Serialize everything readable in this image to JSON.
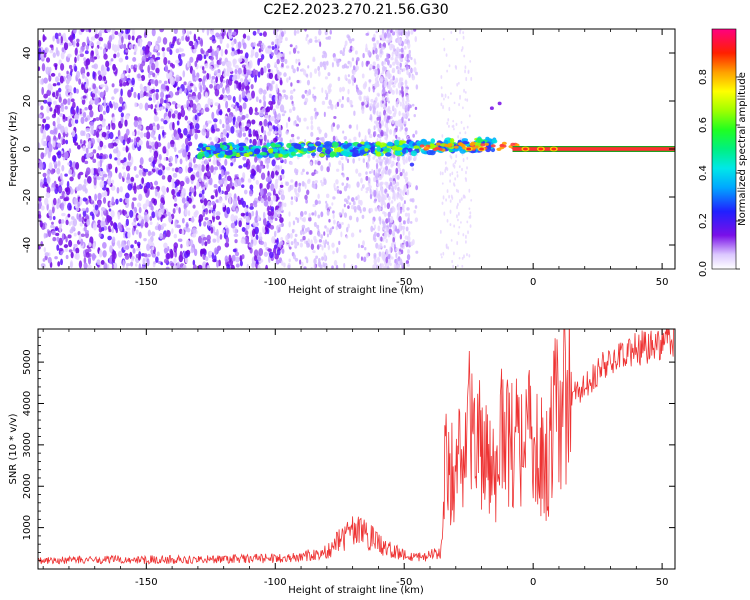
{
  "title": "C2E2.2023.270.21.56.G30",
  "chart_data": [
    {
      "type": "heatmap",
      "xlabel": "Height of straight line (km)",
      "ylabel": "Frequency (Hz)",
      "xlim": [
        -192,
        55
      ],
      "ylim": [
        -50,
        50
      ],
      "xticks": [
        -150,
        -100,
        -50,
        0,
        50
      ],
      "yticks": [
        -40,
        -20,
        0,
        20,
        40
      ],
      "colorbar": {
        "label": "Normalized spectral amplitude",
        "range": [
          0,
          1
        ],
        "ticks": [
          "0.0",
          "0.2",
          "0.4",
          "0.6",
          "0.8"
        ],
        "tick_values": [
          0,
          0.2,
          0.4,
          0.6,
          0.8
        ],
        "colormap": "rainbow (white → violet → blue → cyan → green → yellow → orange → red → magenta)"
      },
      "features": {
        "carrier_line_frequency_hz": 0,
        "carrier_line_x_range": [
          -130,
          55
        ],
        "noise_region_x_range": [
          -192,
          -100
        ],
        "noise_band_x_range": [
          -62,
          -48
        ]
      }
    },
    {
      "type": "line",
      "xlabel": "Height of straight line (km)",
      "ylabel": "SNR (10 * v/v)",
      "xlim": [
        -192,
        55
      ],
      "ylim": [
        0,
        5800
      ],
      "xticks": [
        -150,
        -100,
        -50,
        0,
        50
      ],
      "yticks": [
        1000,
        2000,
        3000,
        4000,
        5000
      ],
      "series": [
        {
          "color": "#ee3333",
          "x": [
            -192,
            -170,
            -150,
            -130,
            -110,
            -100,
            -90,
            -80,
            -75,
            -70,
            -65,
            -60,
            -55,
            -50,
            -45,
            -40,
            -36,
            -34,
            -30,
            -25,
            -20,
            -15,
            -12,
            -10,
            -5,
            0,
            5,
            10,
            15,
            20,
            25,
            30,
            35,
            40,
            45,
            50,
            55
          ],
          "y": [
            200,
            220,
            230,
            230,
            250,
            260,
            300,
            400,
            700,
            900,
            850,
            600,
            450,
            330,
            300,
            330,
            450,
            2500,
            2200,
            3500,
            3000,
            2200,
            3500,
            3000,
            3000,
            3400,
            2400,
            4200,
            4200,
            4400,
            4800,
            5000,
            5200,
            5300,
            5400,
            5500,
            5550
          ]
        }
      ]
    }
  ]
}
